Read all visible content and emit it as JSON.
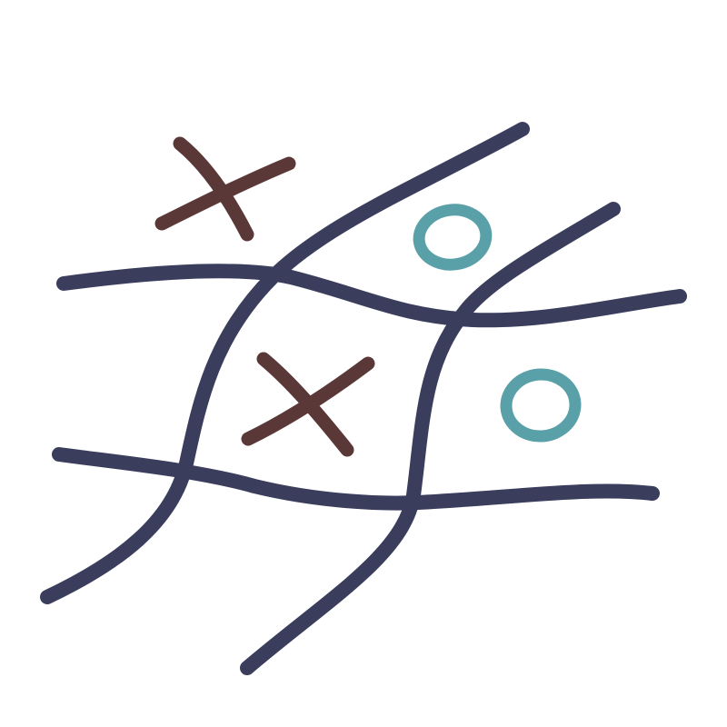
{
  "game": {
    "type": "tic-tac-toe",
    "drawing_style": "hand-drawn",
    "colors": {
      "background": "#ffffff",
      "grid": "#3a3d5c",
      "x_mark": "#5a3838",
      "o_mark": "#5aa0a8"
    },
    "board": [
      [
        "X",
        "",
        "O"
      ],
      [
        "",
        "X",
        "O"
      ],
      [
        "",
        "",
        ""
      ]
    ],
    "marks": [
      {
        "symbol": "X",
        "row": 0,
        "col": 0
      },
      {
        "symbol": "O",
        "row": 0,
        "col": 2
      },
      {
        "symbol": "X",
        "row": 1,
        "col": 1
      },
      {
        "symbol": "O",
        "row": 1,
        "col": 2
      }
    ]
  }
}
